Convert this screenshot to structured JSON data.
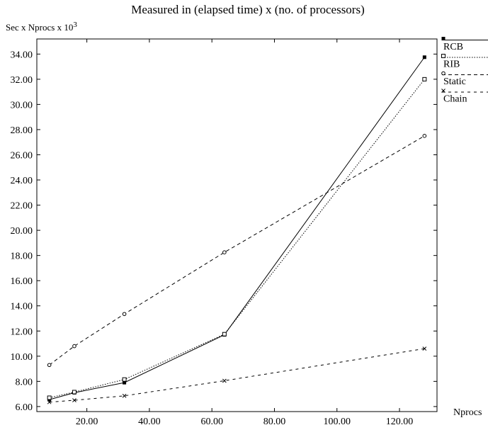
{
  "chart_data": {
    "type": "line",
    "title": "Measured in (elapsed time) x (no. of processors)",
    "ylabel": "Sec x Nprocs x 10",
    "ylabel_superscript": "3",
    "xlabel": "Nprocs",
    "x_ticks": [
      "20.00",
      "40.00",
      "60.00",
      "80.00",
      "100.00",
      "120.00"
    ],
    "y_ticks": [
      "6.00",
      "8.00",
      "10.00",
      "12.00",
      "14.00",
      "16.00",
      "18.00",
      "20.00",
      "22.00",
      "24.00",
      "26.00",
      "28.00",
      "30.00",
      "32.00",
      "34.00"
    ],
    "xlim": [
      4,
      132
    ],
    "ylim": [
      5.6,
      35.2
    ],
    "legend_position": "right",
    "series": [
      {
        "name": "RCB",
        "style": "solid",
        "marker": "filled-square",
        "x": [
          8,
          16,
          32,
          64,
          128
        ],
        "y": [
          6.55,
          7.1,
          7.9,
          11.7,
          33.75
        ]
      },
      {
        "name": "RIB",
        "style": "dotted",
        "marker": "open-square",
        "x": [
          8,
          16,
          32,
          64,
          128
        ],
        "y": [
          6.7,
          7.15,
          8.15,
          11.75,
          32.0
        ]
      },
      {
        "name": "Static",
        "style": "dashed",
        "marker": "circle",
        "x": [
          8,
          16,
          32,
          64,
          128
        ],
        "y": [
          9.3,
          10.8,
          13.35,
          18.25,
          27.5
        ]
      },
      {
        "name": "Chain",
        "style": "dashed-short",
        "marker": "x",
        "x": [
          8,
          16,
          32,
          64,
          128
        ],
        "y": [
          6.35,
          6.5,
          6.85,
          8.05,
          10.6
        ]
      }
    ]
  }
}
